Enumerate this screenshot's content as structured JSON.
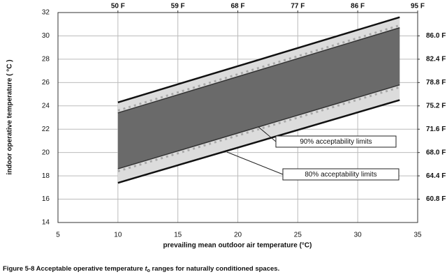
{
  "chart_data": {
    "type": "band",
    "xlabel": "prevailing mean outdoor air temperature (°C)",
    "ylabel": "indoor operative temperature ( °C )",
    "xlim": [
      5,
      35
    ],
    "xticks": [
      5,
      10,
      15,
      20,
      25,
      30,
      35
    ],
    "ylim": [
      14,
      32
    ],
    "yticks": [
      14,
      16,
      18,
      20,
      22,
      24,
      26,
      28,
      30,
      32
    ],
    "grid": true,
    "x2lim": [
      41,
      95
    ],
    "x2ticks": [
      {
        "value": 50,
        "label": "50 F"
      },
      {
        "value": 59,
        "label": "59 F"
      },
      {
        "value": 68,
        "label": "68 F"
      },
      {
        "value": 77,
        "label": "77 F"
      },
      {
        "value": 86,
        "label": "86 F"
      },
      {
        "value": 95,
        "label": "95 F"
      }
    ],
    "y2lim": [
      57.2,
      89.6
    ],
    "y2ticks": [
      {
        "value": 60.8,
        "label": "60.8 F"
      },
      {
        "value": 64.4,
        "label": "64.4 F"
      },
      {
        "value": 68,
        "label": "68.0 F"
      },
      {
        "value": 71.6,
        "label": "71.6 F"
      },
      {
        "value": 75.2,
        "label": "75.2 F"
      },
      {
        "value": 78.8,
        "label": "78.8 F"
      },
      {
        "value": 82.4,
        "label": "82.4 F"
      },
      {
        "value": 86,
        "label": "86.0 F"
      }
    ],
    "bands": [
      {
        "name": "80% acceptability limits",
        "color": "#dcdcdc",
        "x": [
          10,
          33.5
        ],
        "lower": [
          17.4,
          24.5
        ],
        "upper": [
          24.3,
          31.6
        ]
      },
      {
        "name": "90% acceptability limits",
        "color": "#6a6a6a",
        "x": [
          10,
          33.5
        ],
        "lower": [
          18.6,
          25.8
        ],
        "upper": [
          23.4,
          30.7
        ]
      }
    ],
    "dotted": [
      {
        "color": "#a8a8a8",
        "x": [
          10,
          33.5
        ],
        "values": [
          18.4,
          25.6
        ]
      },
      {
        "color": "#a8a8a8",
        "x": [
          10,
          33.5
        ],
        "values": [
          23.6,
          30.9
        ]
      }
    ],
    "caption": [
      "Figure 5-8  Acceptable operative temperature ",
      "t",
      "o",
      " ranges for naturally conditioned spaces."
    ]
  }
}
